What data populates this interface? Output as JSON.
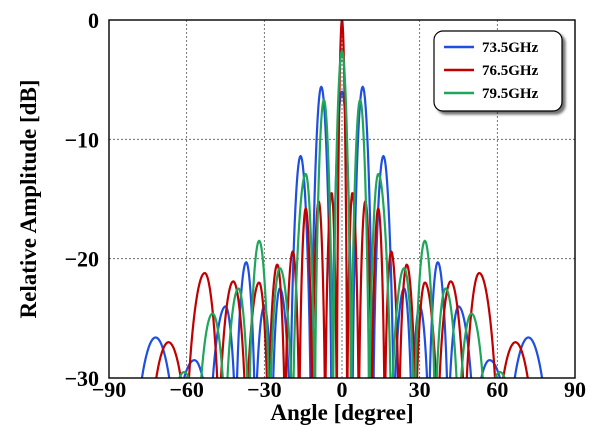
{
  "chart_data": {
    "type": "line",
    "title": "",
    "xlabel": "Angle [degree]",
    "ylabel": "Relative Amplitude [dB]",
    "xlim": [
      -90,
      90
    ],
    "ylim": [
      -30,
      0
    ],
    "xticks": [
      "−90",
      "−60",
      "−30",
      "0",
      "30",
      "60",
      "90"
    ],
    "yticks": [
      "0",
      "−10",
      "−20",
      "−30"
    ],
    "xtick_values": [
      -90,
      -60,
      -30,
      0,
      30,
      60,
      90
    ],
    "ytick_values": [
      0,
      -10,
      -20,
      -30
    ],
    "grid": true,
    "legend_position": "top-right",
    "series": [
      {
        "name": "73.5GHz",
        "color": "#1f4fe0",
        "peaks": [
          {
            "x": -72,
            "y": -26.6
          },
          {
            "x": -57,
            "y": -28.5
          },
          {
            "x": -45,
            "y": -24.0
          },
          {
            "x": -37,
            "y": -20.3
          },
          {
            "x": -30,
            "y": -24.0
          },
          {
            "x": -24,
            "y": -22.5
          },
          {
            "x": -16,
            "y": -11.4
          },
          {
            "x": -8,
            "y": -5.6
          },
          {
            "x": 0,
            "y": -6.0
          },
          {
            "x": 8,
            "y": -5.6
          },
          {
            "x": 16,
            "y": -11.4
          },
          {
            "x": 24,
            "y": -22.5
          },
          {
            "x": 30,
            "y": -24.0
          },
          {
            "x": 37,
            "y": -20.3
          },
          {
            "x": 45,
            "y": -24.0
          },
          {
            "x": 57,
            "y": -28.5
          },
          {
            "x": 72,
            "y": -26.6
          }
        ]
      },
      {
        "name": "76.5GHz",
        "color": "#c00000",
        "peaks": [
          {
            "x": -67,
            "y": -27.0
          },
          {
            "x": -53,
            "y": -21.2
          },
          {
            "x": -42,
            "y": -21.9
          },
          {
            "x": -32,
            "y": -22.0
          },
          {
            "x": -25,
            "y": -20.5
          },
          {
            "x": -19,
            "y": -19.4
          },
          {
            "x": -14,
            "y": -15.8
          },
          {
            "x": -9,
            "y": -15.2
          },
          {
            "x": -4,
            "y": -14.5
          },
          {
            "x": 0,
            "y": 0.0
          },
          {
            "x": 4,
            "y": -14.5
          },
          {
            "x": 9,
            "y": -15.2
          },
          {
            "x": 14,
            "y": -15.8
          },
          {
            "x": 19,
            "y": -19.4
          },
          {
            "x": 25,
            "y": -20.5
          },
          {
            "x": 32,
            "y": -22.0
          },
          {
            "x": 42,
            "y": -21.9
          },
          {
            "x": 53,
            "y": -21.2
          },
          {
            "x": 67,
            "y": -27.0
          }
        ]
      },
      {
        "name": "79.5GHz",
        "color": "#1fa65a",
        "peaks": [
          {
            "x": -61,
            "y": -29.5
          },
          {
            "x": -50,
            "y": -24.6
          },
          {
            "x": -40,
            "y": -22.5
          },
          {
            "x": -32,
            "y": -18.5
          },
          {
            "x": -24,
            "y": -20.8
          },
          {
            "x": -14,
            "y": -12.9
          },
          {
            "x": -7,
            "y": -6.7
          },
          {
            "x": 0,
            "y": -2.6
          },
          {
            "x": 7,
            "y": -6.7
          },
          {
            "x": 14,
            "y": -12.9
          },
          {
            "x": 24,
            "y": -20.8
          },
          {
            "x": 32,
            "y": -18.5
          },
          {
            "x": 40,
            "y": -22.5
          },
          {
            "x": 50,
            "y": -24.6
          },
          {
            "x": 61,
            "y": -29.5
          }
        ]
      }
    ]
  }
}
